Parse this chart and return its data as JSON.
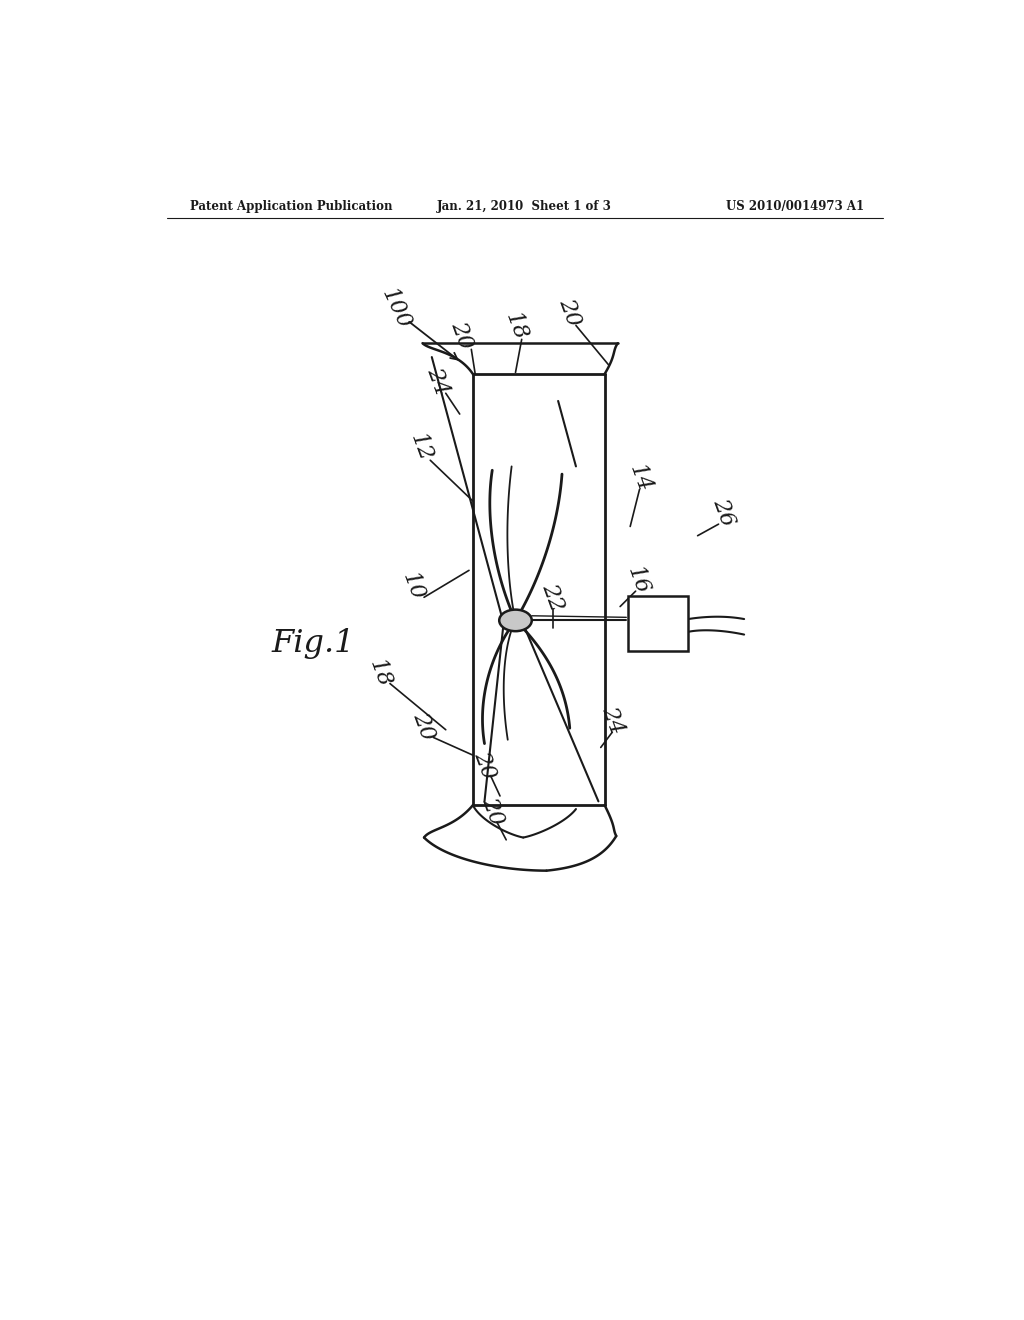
{
  "background_color": "#ffffff",
  "line_color": "#1a1a1a",
  "text_color": "#1a1a1a",
  "header_left": "Patent Application Publication",
  "header_center": "Jan. 21, 2010  Sheet 1 of 3",
  "header_right": "US 2010/0014973 A1",
  "fig_label": "Fig.1"
}
